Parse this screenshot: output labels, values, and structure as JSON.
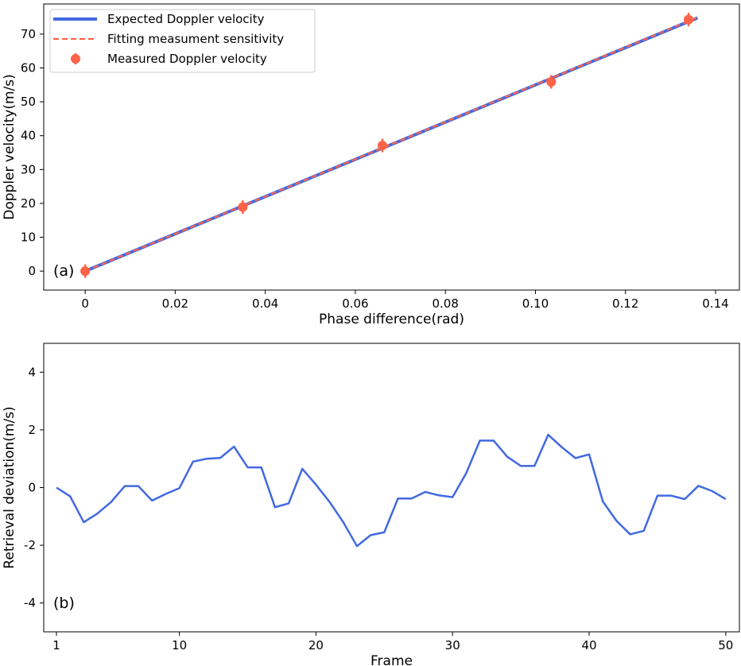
{
  "chart_data": [
    {
      "type": "line",
      "panel_label": "(a)",
      "xlabel": "Phase difference(rad)",
      "ylabel": "Doppler velocity(m/s)",
      "xlim": [
        -0.0092,
        0.1453
      ],
      "ylim": [
        -5.6,
        78.9
      ],
      "xticks": [
        0,
        0.02,
        0.04,
        0.06,
        0.08,
        0.1,
        0.12,
        0.14
      ],
      "xtick_labels": [
        "0",
        "0.02",
        "0.04",
        "0.06",
        "0.08",
        "0.10",
        "0.12",
        "0.14"
      ],
      "yticks": [
        0,
        10,
        20,
        30,
        40,
        50,
        60,
        70
      ],
      "ytick_labels": [
        "0",
        "10",
        "20",
        "30",
        "40",
        "50",
        "60",
        "70"
      ],
      "legend_position": "top-left",
      "series": [
        {
          "name": "Expected Doppler velocity",
          "style": "solid",
          "color": "#4169e1",
          "x": [
            0,
            0.136
          ],
          "y": [
            0,
            74.8
          ]
        },
        {
          "name": "Fitting measument sensitivity",
          "style": "dashed",
          "color": "#ff6347",
          "x": [
            0,
            0.136
          ],
          "y": [
            0,
            74.9
          ]
        },
        {
          "name": "Measured Doppler velocity",
          "style": "errorbar",
          "color": "#ff6347",
          "x": [
            0,
            0.035,
            0.066,
            0.1035,
            0.134
          ],
          "y": [
            0,
            18.9,
            37.1,
            55.9,
            74.3
          ],
          "yerr": [
            2,
            2,
            2,
            2,
            2
          ]
        }
      ]
    },
    {
      "type": "line",
      "panel_label": "(b)",
      "xlabel": "Frame",
      "ylabel": "Retrieval deviation(m/s)",
      "xlim": [
        0.07,
        51.0
      ],
      "ylim": [
        -5,
        5
      ],
      "xticks": [
        1,
        10,
        20,
        30,
        40,
        50
      ],
      "xtick_labels": [
        "1",
        "10",
        "20",
        "30",
        "40",
        "50"
      ],
      "yticks": [
        -4,
        -2,
        0,
        2,
        4
      ],
      "ytick_labels": [
        "-4",
        "-2",
        "0",
        "2",
        "4"
      ],
      "series": [
        {
          "name": "Retrieval deviation",
          "color": "#4169e1",
          "x": [
            1,
            2,
            3,
            4,
            5,
            6,
            7,
            8,
            9,
            10,
            11,
            12,
            13,
            14,
            15,
            16,
            17,
            18,
            19,
            20,
            21,
            22,
            23,
            24,
            25,
            26,
            27,
            28,
            29,
            30,
            31,
            32,
            33,
            34,
            35,
            36,
            37,
            38,
            39,
            40,
            41,
            42,
            43,
            44,
            45,
            46,
            47,
            48,
            49,
            50
          ],
          "y": [
            0,
            -0.3,
            -1.2,
            -0.9,
            -0.5,
            0.05,
            0.05,
            -0.45,
            -0.22,
            -0.02,
            0.9,
            1.0,
            1.03,
            1.42,
            0.7,
            0.7,
            -0.68,
            -0.55,
            0.65,
            0.1,
            -0.5,
            -1.2,
            -2.03,
            -1.65,
            -1.55,
            -0.38,
            -0.38,
            -0.15,
            -0.27,
            -0.33,
            0.5,
            1.63,
            1.63,
            1.07,
            0.75,
            0.75,
            1.83,
            1.4,
            1.02,
            1.15,
            -0.48,
            -1.15,
            -1.62,
            -1.5,
            -0.28,
            -0.28,
            -0.4,
            0.06,
            -0.12,
            -0.4
          ]
        }
      ]
    }
  ]
}
